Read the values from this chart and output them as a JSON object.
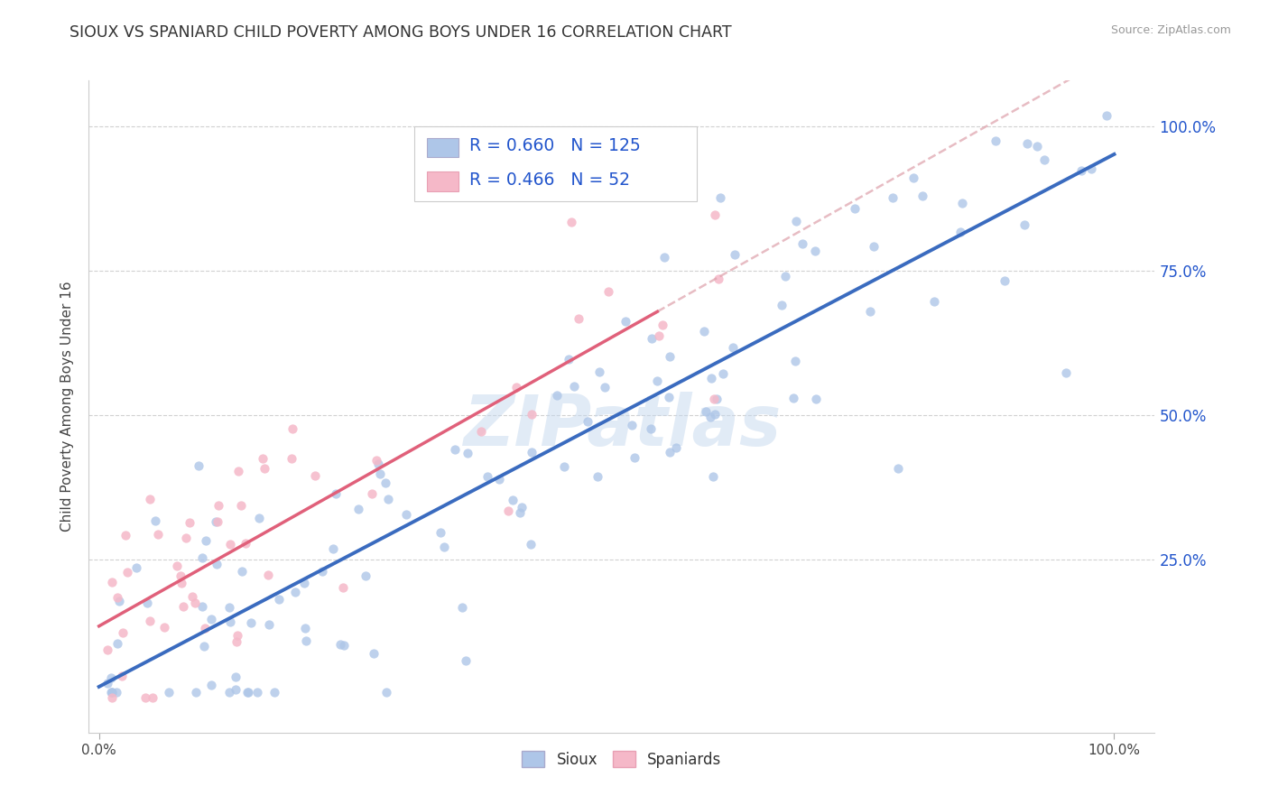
{
  "title": "SIOUX VS SPANIARD CHILD POVERTY AMONG BOYS UNDER 16 CORRELATION CHART",
  "source": "Source: ZipAtlas.com",
  "ylabel": "Child Poverty Among Boys Under 16",
  "sioux_R": 0.66,
  "sioux_N": 125,
  "spaniard_R": 0.466,
  "spaniard_N": 52,
  "sioux_color": "#aec6e8",
  "sioux_line_color": "#3a6bbf",
  "spaniard_color": "#f5b8c8",
  "spaniard_line_color": "#e0607a",
  "spaniard_dash_color": "#dda0aa",
  "watermark": "ZIPatlas",
  "background_color": "#ffffff",
  "grid_color": "#cccccc",
  "ytick_labels": [
    "25.0%",
    "50.0%",
    "75.0%",
    "100.0%"
  ],
  "ytick_values": [
    0.25,
    0.5,
    0.75,
    1.0
  ],
  "legend_color": "#2255cc",
  "title_color": "#333333",
  "ylabel_color": "#444444",
  "tick_label_color": "#444444",
  "right_tick_color": "#2255cc"
}
